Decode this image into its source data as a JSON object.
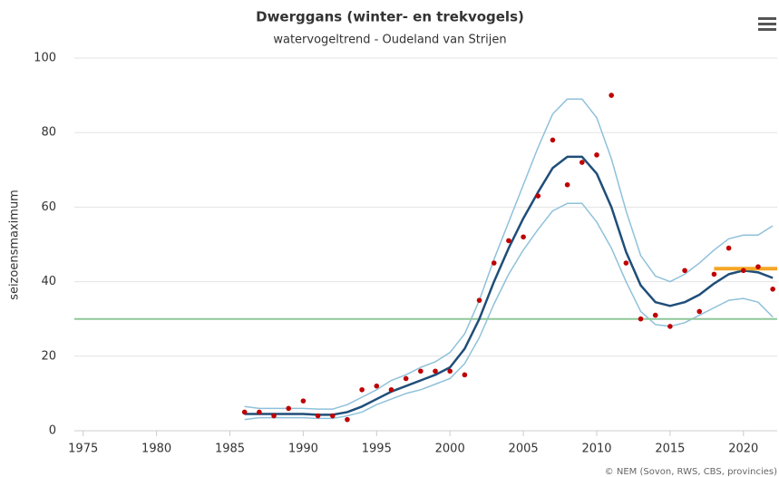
{
  "chart_data": {
    "type": "line",
    "title": "Dwerggans (winter- en trekvogels)",
    "subtitle": "watervogeltrend - Oudeland van Strijen",
    "y_label": "seizoensmaximum",
    "credit": "© NEM (Sovon, RWS, CBS, provincies)",
    "xlim": [
      1974.4,
      2022.3
    ],
    "xticks": [
      1975,
      1980,
      1985,
      1990,
      1995,
      2000,
      2005,
      2010,
      2015,
      2020
    ],
    "ylim": [
      0,
      100
    ],
    "yticks": [
      0,
      20,
      40,
      60,
      80,
      100
    ],
    "grid": true,
    "x": [
      1986,
      1987,
      1988,
      1989,
      1990,
      1991,
      1992,
      1993,
      1994,
      1995,
      1996,
      1997,
      1998,
      1999,
      2000,
      2001,
      2002,
      2003,
      2004,
      2005,
      2006,
      2007,
      2008,
      2009,
      2010,
      2011,
      2012,
      2013,
      2014,
      2015,
      2016,
      2017,
      2018,
      2019,
      2020,
      2021,
      2022
    ],
    "series": [
      {
        "type": "line",
        "color": "#8fc1da",
        "width": 1.5,
        "values": [
          6.5,
          6,
          6,
          6,
          6,
          5.8,
          5.8,
          7,
          9,
          11,
          13.5,
          15,
          17,
          18.5,
          21,
          26,
          35,
          46,
          56,
          66,
          76,
          85,
          89,
          89,
          84,
          73,
          59,
          47,
          41.5,
          40,
          42,
          45,
          48.5,
          51.5,
          52.5,
          52.5,
          55
        ]
      },
      {
        "type": "line",
        "color": "#8fc1da",
        "width": 1.5,
        "values": [
          3,
          3.5,
          3.5,
          3.5,
          3.5,
          3.3,
          3.3,
          4,
          5,
          7,
          8.5,
          10,
          11,
          12.5,
          14,
          18,
          25,
          34,
          42,
          48.5,
          54,
          59,
          61,
          61,
          56,
          49,
          40,
          32,
          28.5,
          28,
          29,
          31,
          33,
          35,
          35.5,
          34.5,
          30.5
        ]
      },
      {
        "type": "line",
        "color": "#8fc79a",
        "width": 2,
        "x": [
          1974.4,
          2022.3
        ],
        "values": [
          30,
          30
        ]
      },
      {
        "type": "line",
        "color": "#1f4e79",
        "width": 2.5,
        "values": [
          4.5,
          4.5,
          4.5,
          4.5,
          4.5,
          4.3,
          4.3,
          5,
          6.5,
          8.5,
          10.5,
          12,
          13.5,
          15,
          17,
          22,
          30,
          40,
          49,
          57,
          64,
          70.5,
          73.5,
          73.5,
          69,
          60,
          48,
          39,
          34.5,
          33.5,
          34.5,
          36.5,
          39.5,
          42,
          43,
          42.5,
          41
        ]
      },
      {
        "type": "line",
        "color": "#f5a623",
        "width": 4,
        "x": [
          2018,
          2022.3
        ],
        "values": [
          43.5,
          43.5
        ]
      },
      {
        "type": "scatter",
        "color": "#c00000",
        "values": [
          5,
          5,
          4,
          6,
          8,
          4,
          4,
          3,
          11,
          12,
          11,
          14,
          16,
          16,
          16,
          15,
          35,
          45,
          51,
          52,
          63,
          78,
          66,
          72,
          74,
          90,
          45,
          30,
          31,
          28,
          43,
          32,
          42,
          49,
          43,
          44,
          38
        ]
      }
    ]
  }
}
